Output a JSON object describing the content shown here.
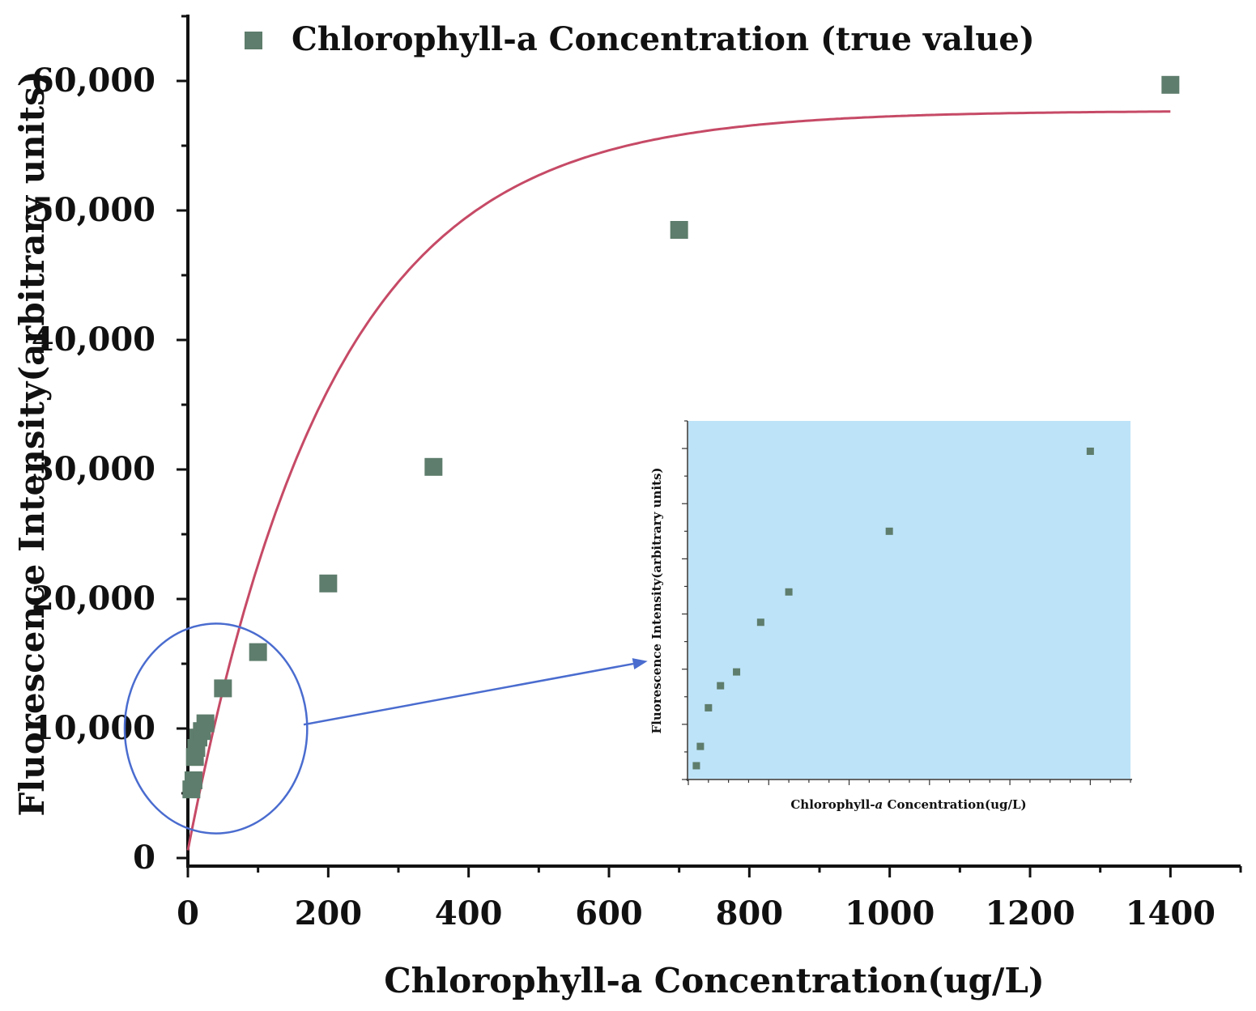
{
  "chart_data": {
    "type": "scatter",
    "xlabel": "Chlorophyll-a Concentration(ug/L)",
    "ylabel": "Fluorescence Intensity(arbitrary units)",
    "xlim": [
      0,
      1500
    ],
    "ylim": [
      0,
      65000
    ],
    "x_ticks": [
      0,
      200,
      400,
      600,
      800,
      1000,
      1200,
      1400
    ],
    "x_tick_labels": [
      "0",
      "200",
      "400",
      "600",
      "800",
      "1000",
      "1200",
      "1400"
    ],
    "y_ticks": [
      0,
      10000,
      20000,
      30000,
      40000,
      50000,
      60000
    ],
    "y_tick_labels": [
      "0",
      "10,000",
      "20,000",
      "30,000",
      "40,000",
      "50,000",
      "60,000"
    ],
    "legend": {
      "label": "Chlorophyll-a Concentration (true value)",
      "placement": "top-left"
    },
    "series": [
      {
        "name": "Chlorophyll-a Concentration (true value)",
        "kind": "markers",
        "color": "#5e7d6c",
        "points": [
          [
            5,
            5300
          ],
          [
            8,
            6000
          ],
          [
            10,
            7800
          ],
          [
            12,
            8500
          ],
          [
            15,
            9300
          ],
          [
            20,
            9800
          ],
          [
            25,
            10400
          ],
          [
            50,
            13100
          ],
          [
            100,
            15900
          ],
          [
            200,
            21200
          ],
          [
            350,
            30200
          ],
          [
            700,
            48500
          ],
          [
            1400,
            59700
          ]
        ]
      },
      {
        "name": "fit curve",
        "kind": "line",
        "color": "#c64a66",
        "model": "y = a*(1-exp(-x/b)) + c",
        "params": {
          "a": 57100,
          "b": 205,
          "c": 600
        },
        "x_range": [
          0,
          1400
        ]
      }
    ],
    "annotations": {
      "zoom_circle": {
        "center": [
          40,
          10000
        ],
        "radius_x": 130,
        "radius_y": 8100,
        "color": "#4a6ccf"
      },
      "arrow": {
        "from": [
          165,
          10300
        ],
        "to": [
          655,
          15200
        ],
        "color": "#4a6ccf"
      }
    },
    "inset": {
      "type": "scatter",
      "background": "#bde3f8",
      "xlabel_prefix": "Chlorophyll-",
      "xlabel_italic": "a",
      "xlabel_suffix": " Concentration(ug/L)",
      "ylabel": "Fluorescence Intensity(arbitrary units)",
      "xlim": [
        0,
        110
      ],
      "ylim": [
        4000,
        17000
      ],
      "points": [
        [
          2,
          4500
        ],
        [
          3,
          5200
        ],
        [
          5,
          6600
        ],
        [
          8,
          7400
        ],
        [
          12,
          7900
        ],
        [
          18,
          9700
        ],
        [
          25,
          10800
        ],
        [
          50,
          13000
        ],
        [
          100,
          15900
        ]
      ]
    }
  }
}
